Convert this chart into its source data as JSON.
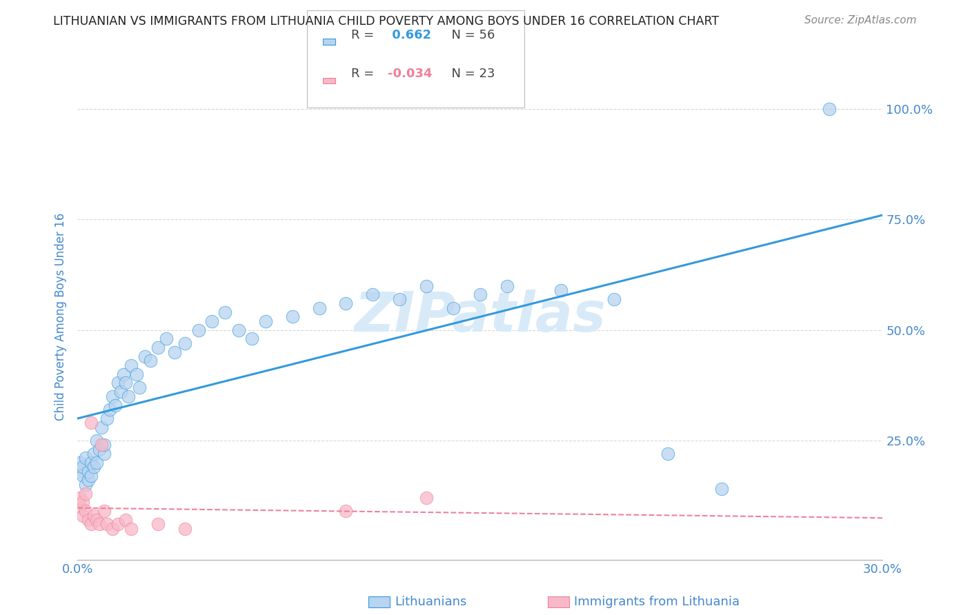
{
  "title": "LITHUANIAN VS IMMIGRANTS FROM LITHUANIA CHILD POVERTY AMONG BOYS UNDER 16 CORRELATION CHART",
  "source": "Source: ZipAtlas.com",
  "ylabel": "Child Poverty Among Boys Under 16",
  "xmin": 0.0,
  "xmax": 0.3,
  "ymin": -0.02,
  "ymax": 1.08,
  "yticks": [
    0.0,
    0.25,
    0.5,
    0.75,
    1.0
  ],
  "ytick_labels": [
    "",
    "25.0%",
    "50.0%",
    "75.0%",
    "100.0%"
  ],
  "xticks": [
    0.0,
    0.05,
    0.1,
    0.15,
    0.2,
    0.25,
    0.3
  ],
  "xtick_labels": [
    "0.0%",
    "",
    "",
    "",
    "",
    "",
    "30.0%"
  ],
  "blue_scatter_x": [
    0.001,
    0.001,
    0.002,
    0.002,
    0.003,
    0.003,
    0.004,
    0.004,
    0.005,
    0.005,
    0.006,
    0.006,
    0.007,
    0.007,
    0.008,
    0.009,
    0.01,
    0.01,
    0.011,
    0.012,
    0.013,
    0.014,
    0.015,
    0.016,
    0.017,
    0.018,
    0.019,
    0.02,
    0.022,
    0.023,
    0.025,
    0.027,
    0.03,
    0.033,
    0.036,
    0.04,
    0.045,
    0.05,
    0.055,
    0.06,
    0.065,
    0.07,
    0.08,
    0.09,
    0.1,
    0.11,
    0.12,
    0.13,
    0.14,
    0.15,
    0.16,
    0.18,
    0.2,
    0.22,
    0.24,
    0.28
  ],
  "blue_scatter_y": [
    0.18,
    0.2,
    0.17,
    0.19,
    0.15,
    0.21,
    0.16,
    0.18,
    0.2,
    0.17,
    0.19,
    0.22,
    0.2,
    0.25,
    0.23,
    0.28,
    0.22,
    0.24,
    0.3,
    0.32,
    0.35,
    0.33,
    0.38,
    0.36,
    0.4,
    0.38,
    0.35,
    0.42,
    0.4,
    0.37,
    0.44,
    0.43,
    0.46,
    0.48,
    0.45,
    0.47,
    0.5,
    0.52,
    0.54,
    0.5,
    0.48,
    0.52,
    0.53,
    0.55,
    0.56,
    0.58,
    0.57,
    0.6,
    0.55,
    0.58,
    0.6,
    0.59,
    0.57,
    0.22,
    0.14,
    1.0
  ],
  "pink_scatter_x": [
    0.001,
    0.001,
    0.002,
    0.002,
    0.003,
    0.003,
    0.004,
    0.005,
    0.005,
    0.006,
    0.007,
    0.008,
    0.009,
    0.01,
    0.011,
    0.013,
    0.015,
    0.018,
    0.02,
    0.03,
    0.04,
    0.1,
    0.13
  ],
  "pink_scatter_y": [
    0.1,
    0.12,
    0.08,
    0.11,
    0.09,
    0.13,
    0.07,
    0.29,
    0.06,
    0.08,
    0.07,
    0.06,
    0.24,
    0.09,
    0.06,
    0.05,
    0.06,
    0.07,
    0.05,
    0.06,
    0.05,
    0.09,
    0.12
  ],
  "blue_R": 0.662,
  "blue_N": 56,
  "pink_R": -0.034,
  "pink_N": 23,
  "scatter_color_blue": "#b8d4f0",
  "scatter_color_pink": "#f8b8c8",
  "line_color_blue": "#3399dd",
  "line_color_pink": "#ee8099",
  "watermark": "ZIPatlas",
  "watermark_color": "#d8eaf8",
  "axis_color": "#4488cc",
  "grid_color": "#cccccc",
  "title_color": "#222222",
  "source_color": "#888888",
  "bg_color": "#ffffff",
  "legend_text_blue_r": "R = ",
  "legend_val_blue_r": " 0.662",
  "legend_text_blue_n": "N = 56",
  "legend_text_pink_r": "R = ",
  "legend_val_pink_r": "-0.034",
  "legend_text_pink_n": "N = 23"
}
